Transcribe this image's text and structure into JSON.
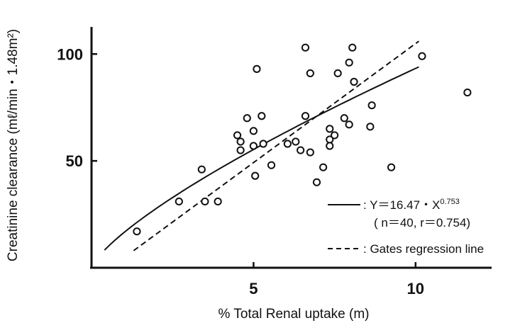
{
  "chart_data": {
    "type": "scatter",
    "xlabel": "% Total Renal uptake (m)",
    "ylabel": "Creatinine clearance (mℓ/min・1.48m²)",
    "xlim": [
      0,
      12.5
    ],
    "ylim": [
      0,
      115
    ],
    "x_ticks": [
      5,
      10
    ],
    "y_ticks": [
      50,
      100
    ],
    "x_tick_labels": [
      "5",
      "10"
    ],
    "y_tick_labels": [
      "50",
      "100"
    ],
    "points": [
      {
        "x": 1.4,
        "y": 17
      },
      {
        "x": 2.7,
        "y": 31
      },
      {
        "x": 3.4,
        "y": 46
      },
      {
        "x": 3.5,
        "y": 31
      },
      {
        "x": 3.9,
        "y": 31
      },
      {
        "x": 4.5,
        "y": 62
      },
      {
        "x": 4.6,
        "y": 59
      },
      {
        "x": 4.6,
        "y": 55
      },
      {
        "x": 4.8,
        "y": 70
      },
      {
        "x": 5.0,
        "y": 64
      },
      {
        "x": 5.0,
        "y": 57
      },
      {
        "x": 5.05,
        "y": 43
      },
      {
        "x": 5.1,
        "y": 93
      },
      {
        "x": 5.25,
        "y": 71
      },
      {
        "x": 5.3,
        "y": 58
      },
      {
        "x": 5.55,
        "y": 48
      },
      {
        "x": 6.05,
        "y": 58
      },
      {
        "x": 6.3,
        "y": 59
      },
      {
        "x": 6.45,
        "y": 55
      },
      {
        "x": 6.6,
        "y": 71
      },
      {
        "x": 6.6,
        "y": 103
      },
      {
        "x": 6.75,
        "y": 54
      },
      {
        "x": 6.75,
        "y": 91
      },
      {
        "x": 6.95,
        "y": 40
      },
      {
        "x": 7.15,
        "y": 47
      },
      {
        "x": 7.35,
        "y": 65
      },
      {
        "x": 7.35,
        "y": 60
      },
      {
        "x": 7.35,
        "y": 57
      },
      {
        "x": 7.5,
        "y": 62
      },
      {
        "x": 7.6,
        "y": 91
      },
      {
        "x": 7.8,
        "y": 70
      },
      {
        "x": 7.95,
        "y": 67
      },
      {
        "x": 7.95,
        "y": 96
      },
      {
        "x": 8.05,
        "y": 103
      },
      {
        "x": 8.1,
        "y": 87
      },
      {
        "x": 8.6,
        "y": 66
      },
      {
        "x": 8.65,
        "y": 76
      },
      {
        "x": 9.25,
        "y": 47
      },
      {
        "x": 10.2,
        "y": 99
      },
      {
        "x": 11.6,
        "y": 82
      }
    ],
    "series": [
      {
        "name": ": Y＝16.47・X0.753",
        "kind": "power_fit",
        "coef": 16.47,
        "exponent": 0.753,
        "x_range": [
          0.4,
          10.1
        ],
        "style": "solid"
      },
      {
        "name": ": Gates regression line",
        "kind": "line",
        "points": [
          [
            1.3,
            8
          ],
          [
            10.1,
            106
          ]
        ],
        "style": "dashed"
      }
    ],
    "legend": {
      "placement": "bottom-right",
      "fit_label": ":  Y＝16.47・X",
      "fit_exponent": "0.753",
      "fit_stats": "( n＝40,  r＝0.754)",
      "gates_label": ": Gates regression line"
    }
  }
}
